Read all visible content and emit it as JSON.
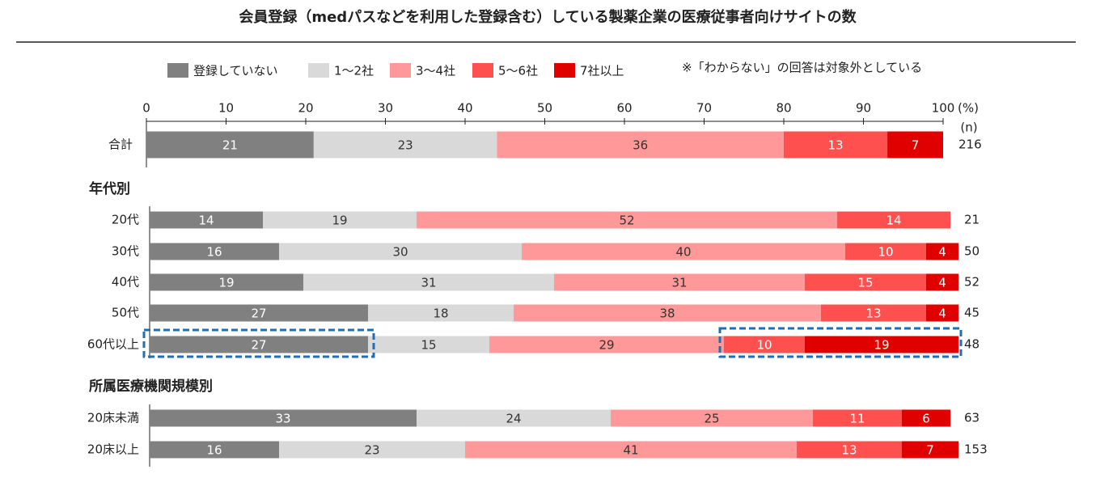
{
  "chart_data": {
    "type": "bar",
    "orientation": "horizontal",
    "stacked": true,
    "title": "会員登録（medパスなどを利用した登録含む）している製薬企業の医療従事者向けサイトの数",
    "note": "※「わからない」の回答は対象外としている",
    "x_unit": "(%)",
    "n_label": "(n)",
    "section_titles": [
      "年代別",
      "所属医療機関規模別"
    ],
    "categories": [
      "合計",
      "20代",
      "30代",
      "40代",
      "50代",
      "60代以上",
      "20床未満",
      "20床以上"
    ],
    "n": [
      216,
      21,
      50,
      52,
      45,
      48,
      63,
      153
    ],
    "xlim": [
      0,
      100
    ],
    "xticks": [
      0,
      10,
      20,
      30,
      40,
      50,
      60,
      70,
      80,
      90,
      100
    ],
    "series": [
      {
        "name": "登録していない",
        "color": "#808080",
        "values": [
          21,
          14,
          16,
          19,
          27,
          27,
          33,
          16
        ]
      },
      {
        "name": "1～2社",
        "color": "#d9d9d9",
        "values": [
          23,
          19,
          30,
          31,
          18,
          15,
          24,
          23
        ]
      },
      {
        "name": "3～4社",
        "color": "#ff9999",
        "values": [
          36,
          52,
          40,
          31,
          38,
          29,
          25,
          41
        ]
      },
      {
        "name": "5～6社",
        "color": "#ff5050",
        "values": [
          13,
          14,
          10,
          15,
          13,
          10,
          11,
          13
        ]
      },
      {
        "name": "7社以上",
        "color": "#e00000",
        "values": [
          7,
          null,
          4,
          4,
          4,
          19,
          6,
          7
        ]
      }
    ]
  }
}
